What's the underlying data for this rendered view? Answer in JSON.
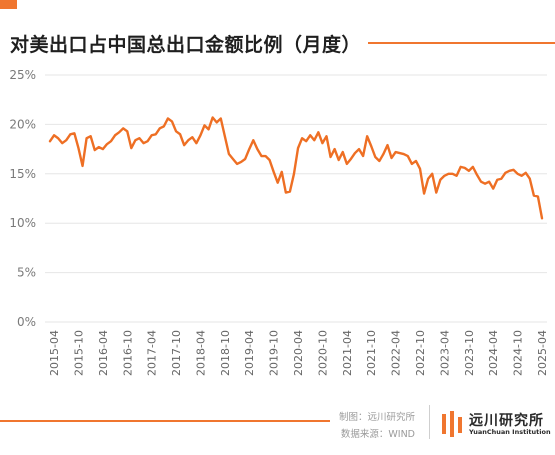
{
  "title": "对美出口占中国总出口金额比例（月度）",
  "credits": {
    "producer": "制图：远川研究所",
    "source": "数据来源：WIND"
  },
  "logo": {
    "name": "远川研究所",
    "subtitle": "YuanChuan Institution"
  },
  "colors": {
    "accent": "#f0762f",
    "line": "#ee6f24",
    "grid": "#e6e6e6",
    "text": "#555555"
  },
  "chart_data": {
    "type": "line",
    "title": "对美出口占中国总出口金额比例（月度）",
    "y_unit": "%",
    "ylim": [
      0,
      25
    ],
    "yticks": [
      "0%",
      "5%",
      "10%",
      "15%",
      "20%",
      "25%"
    ],
    "xticks": [
      "2015-04",
      "2015-10",
      "2016-04",
      "2016-10",
      "2017-04",
      "2017-10",
      "2018-04",
      "2018-10",
      "2019-04",
      "2019-10",
      "2020-04",
      "2020-10",
      "2021-04",
      "2021-10",
      "2022-04",
      "2022-10",
      "2023-04",
      "2023-10",
      "2024-04",
      "2024-10",
      "2025-04"
    ],
    "grid": true,
    "legend": "none",
    "x": [
      "2015-03",
      "2015-04",
      "2015-05",
      "2015-06",
      "2015-07",
      "2015-08",
      "2015-09",
      "2015-10",
      "2015-11",
      "2015-12",
      "2016-01",
      "2016-02",
      "2016-03",
      "2016-04",
      "2016-05",
      "2016-06",
      "2016-07",
      "2016-08",
      "2016-09",
      "2016-10",
      "2016-11",
      "2016-12",
      "2017-01",
      "2017-02",
      "2017-03",
      "2017-04",
      "2017-05",
      "2017-06",
      "2017-07",
      "2017-08",
      "2017-09",
      "2017-10",
      "2017-11",
      "2017-12",
      "2018-01",
      "2018-02",
      "2018-03",
      "2018-04",
      "2018-05",
      "2018-06",
      "2018-07",
      "2018-08",
      "2018-09",
      "2018-10",
      "2018-11",
      "2018-12",
      "2019-01",
      "2019-02",
      "2019-03",
      "2019-04",
      "2019-05",
      "2019-06",
      "2019-07",
      "2019-08",
      "2019-09",
      "2019-10",
      "2019-11",
      "2019-12",
      "2020-01",
      "2020-02",
      "2020-03",
      "2020-04",
      "2020-05",
      "2020-06",
      "2020-07",
      "2020-08",
      "2020-09",
      "2020-10",
      "2020-11",
      "2020-12",
      "2021-01",
      "2021-02",
      "2021-03",
      "2021-04",
      "2021-05",
      "2021-06",
      "2021-07",
      "2021-08",
      "2021-09",
      "2021-10",
      "2021-11",
      "2021-12",
      "2022-01",
      "2022-02",
      "2022-03",
      "2022-04",
      "2022-05",
      "2022-06",
      "2022-07",
      "2022-08",
      "2022-09",
      "2022-10",
      "2022-11",
      "2022-12",
      "2023-01",
      "2023-02",
      "2023-03",
      "2023-04",
      "2023-05",
      "2023-06",
      "2023-07",
      "2023-08",
      "2023-09",
      "2023-10",
      "2023-11",
      "2023-12",
      "2024-01",
      "2024-02",
      "2024-03",
      "2024-04",
      "2024-05",
      "2024-06",
      "2024-07",
      "2024-08",
      "2024-09",
      "2024-10",
      "2024-11",
      "2024-12",
      "2025-01",
      "2025-02",
      "2025-03",
      "2025-04"
    ],
    "series": [
      {
        "values": [
          18.3,
          18.9,
          18.6,
          18.1,
          18.4,
          19.0,
          19.1,
          17.6,
          15.8,
          18.6,
          18.8,
          17.4,
          17.7,
          17.5,
          18.0,
          18.3,
          18.9,
          19.2,
          19.6,
          19.3,
          17.6,
          18.4,
          18.6,
          18.1,
          18.3,
          18.9,
          19.0,
          19.6,
          19.8,
          20.6,
          20.3,
          19.3,
          19.0,
          17.9,
          18.4,
          18.7,
          18.1,
          18.9,
          19.9,
          19.5,
          20.7,
          20.2,
          20.6,
          18.8,
          17.0,
          16.5,
          16.0,
          16.2,
          16.5,
          17.5,
          18.4,
          17.5,
          16.8,
          16.8,
          16.4,
          15.2,
          14.1,
          15.2,
          13.1,
          13.2,
          15.0,
          17.6,
          18.6,
          18.3,
          18.9,
          18.4,
          19.2,
          18.1,
          18.8,
          16.7,
          17.5,
          16.4,
          17.2,
          16.0,
          16.5,
          17.1,
          17.5,
          16.8,
          18.8,
          17.8,
          16.7,
          16.3,
          17.0,
          17.9,
          16.6,
          17.2,
          17.1,
          17.0,
          16.8,
          16.0,
          16.3,
          15.5,
          13.0,
          14.5,
          15.0,
          13.1,
          14.4,
          14.8,
          15.0,
          15.0,
          14.8,
          15.7,
          15.6,
          15.3,
          15.7,
          14.9,
          14.2,
          14.0,
          14.2,
          13.5,
          14.4,
          14.5,
          15.1,
          15.3,
          15.4,
          15.0,
          14.8,
          15.1,
          14.5,
          12.8,
          12.7,
          10.5
        ]
      }
    ]
  }
}
